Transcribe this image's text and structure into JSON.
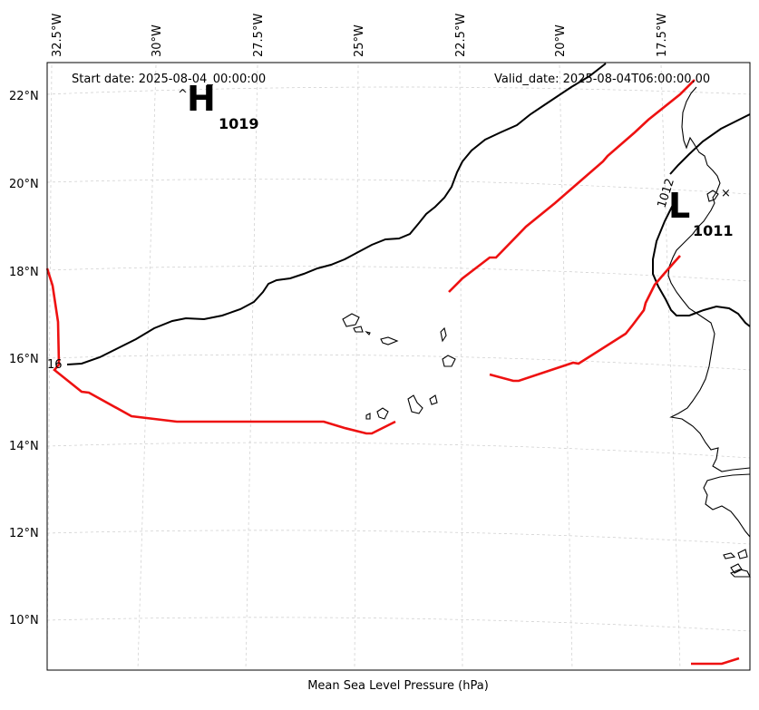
{
  "header": {
    "start_date": "Start date: 2025-08-04_00:00:00",
    "valid_date": "Valid_date: 2025-08-04T06:00:00.00"
  },
  "footer": {
    "title": "Mean Sea Level Pressure (hPa)"
  },
  "longitude_labels": [
    "32.5°W",
    "30°W",
    "27.5°W",
    "25°W",
    "22.5°W",
    "20°W",
    "17.5°W"
  ],
  "latitude_labels": [
    "22°N",
    "20°N",
    "18°N",
    "16°N",
    "14°N",
    "12°N",
    "10°N"
  ],
  "pressure_centers": {
    "high": {
      "symbol": "H",
      "value": "1019",
      "marker": "^"
    },
    "low": {
      "symbol": "L",
      "value": "1011",
      "marker": "×"
    }
  },
  "contour_labels": {
    "isobar_1012": "1012",
    "isobar_1016": "16"
  },
  "colors": {
    "isobar": "#000000",
    "front": "#ee1111",
    "grid": "#cccccc",
    "coast": "#000000"
  }
}
